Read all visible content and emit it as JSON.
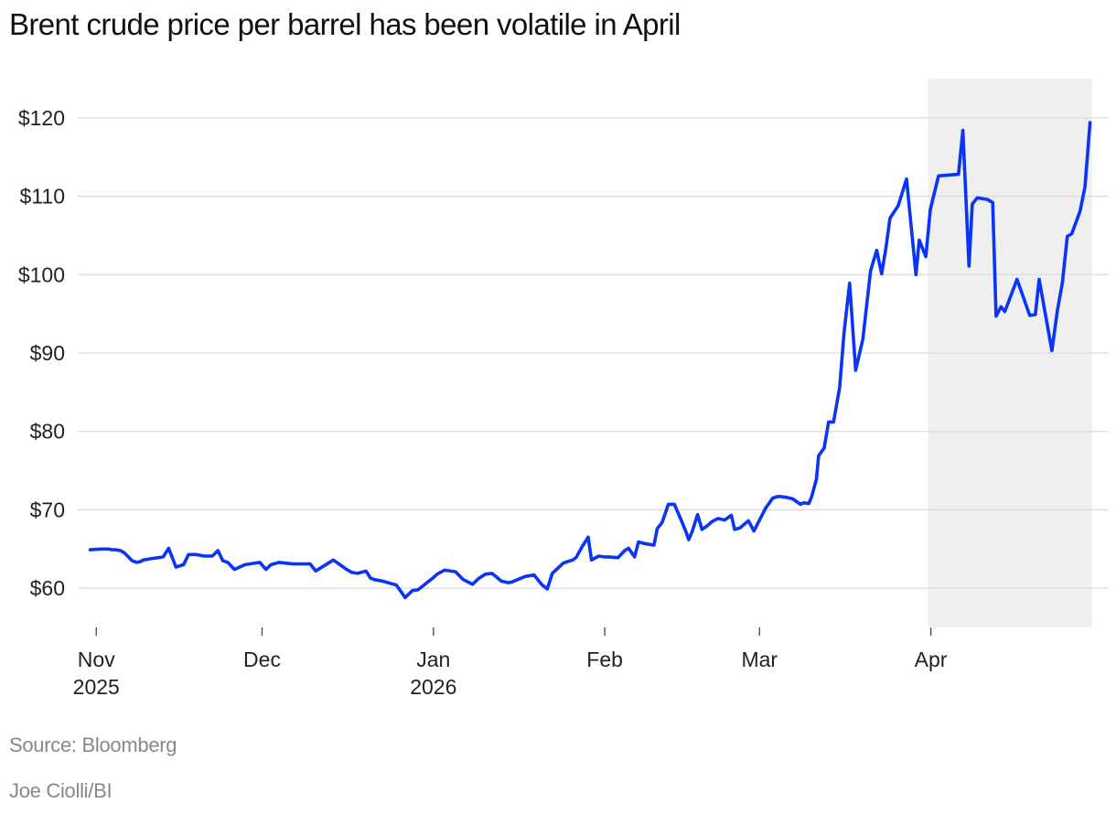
{
  "chart_data": {
    "type": "line",
    "title": "Brent crude price per barrel has been volatile in April",
    "xlabel": "",
    "ylabel": "",
    "y_axis": {
      "ticks": [
        60,
        70,
        80,
        90,
        100,
        110,
        120
      ],
      "tick_labels": [
        "$60",
        "$70",
        "$80",
        "$90",
        "$100",
        "$110",
        "$120"
      ],
      "range": [
        55,
        125
      ],
      "grid": true
    },
    "x_axis": {
      "unit": "days since Nov 1, 2025",
      "range": [
        -1.2,
        180.2
      ],
      "ticks": [
        {
          "day": 0,
          "label": "Nov",
          "sublabel": "2025"
        },
        {
          "day": 30,
          "label": "Dec",
          "sublabel": ""
        },
        {
          "day": 61,
          "label": "Jan",
          "sublabel": "2026"
        },
        {
          "day": 92,
          "label": "Feb",
          "sublabel": ""
        },
        {
          "day": 120,
          "label": "Mar",
          "sublabel": ""
        },
        {
          "day": 151,
          "label": "Apr",
          "sublabel": ""
        }
      ]
    },
    "highlight": {
      "label": "April",
      "x_start": 150.5,
      "x_end": 180.2,
      "color": "#efefef"
    },
    "series": [
      {
        "name": "Brent crude price per barrel",
        "color": "#0a35f5",
        "x": [
          -1.1,
          0.7,
          1.3,
          2.2,
          2.9,
          3.5,
          4.4,
          5.1,
          6.5,
          7.3,
          8.0,
          8.5,
          9.4,
          10.1,
          11.3,
          12.1,
          13.1,
          14.4,
          15.8,
          16.7,
          17.3,
          18.0,
          19.6,
          21.0,
          22.0,
          22.9,
          23.8,
          25.0,
          26.9,
          29.6,
          30.7,
          31.6,
          33.1,
          35.6,
          37.8,
          38.7,
          39.7,
          42.9,
          43.9,
          44.7,
          45.3,
          46.3,
          47.3,
          48.8,
          49.6,
          50.3,
          51.8,
          54.3,
          55.9,
          57.2,
          58.2,
          60.9,
          61.7,
          63.0,
          65.0,
          66.4,
          68.1,
          69.1,
          70.4,
          71.6,
          73.3,
          74.5,
          75.2,
          77.6,
          79.2,
          80.0,
          80.7,
          81.6,
          82.5,
          84.5,
          85.3,
          86.2,
          86.8,
          88.0,
          89.0,
          89.6,
          90.9,
          91.9,
          92.7,
          94.4,
          95.6,
          96.3,
          97.4,
          98.1,
          99.2,
          100.0,
          100.9,
          101.5,
          102.4,
          103.5,
          104.6,
          105.7,
          106.7,
          107.2,
          107.8,
          108.8,
          109.6,
          110.6,
          111.4,
          112.5,
          113.7,
          114.9,
          115.5,
          116.5,
          117.3,
          118.0,
          119.0,
          121.1,
          122.4,
          123.3,
          123.7,
          124.8,
          126.0,
          127.4,
          128.0,
          128.9,
          129.4,
          130.3,
          130.7,
          131.7,
          132.5,
          133.4,
          134.5,
          135.3,
          136.3,
          137.4,
          138.7,
          140.1,
          141.2,
          142.1,
          142.9,
          143.6,
          145.1,
          146.6,
          148.3,
          148.9,
          150.1,
          150.9,
          152.4,
          156.0,
          156.8,
          157.9,
          158.5,
          159.4,
          161.2,
          162.2,
          162.8,
          163.7,
          164.4,
          166.6,
          168.9,
          169.9,
          170.6,
          172.9,
          173.9,
          174.8,
          175.7,
          176.5,
          178.0,
          178.9,
          179.8
        ],
        "y": [
          64.9,
          65.0,
          65.0,
          65.0,
          64.9,
          64.9,
          64.8,
          64.5,
          63.5,
          63.3,
          63.4,
          63.6,
          63.7,
          63.8,
          63.9,
          64.0,
          65.1,
          62.7,
          63.0,
          64.3,
          64.3,
          64.3,
          64.1,
          64.1,
          64.8,
          63.5,
          63.3,
          62.4,
          63.0,
          63.3,
          62.4,
          63.0,
          63.3,
          63.1,
          63.1,
          63.1,
          62.2,
          63.6,
          63.1,
          62.7,
          62.4,
          62.0,
          61.9,
          62.2,
          61.3,
          61.1,
          60.9,
          60.4,
          58.8,
          59.7,
          59.8,
          61.3,
          61.8,
          62.3,
          62.1,
          61.1,
          60.5,
          61.2,
          61.8,
          61.9,
          60.9,
          60.7,
          60.8,
          61.5,
          61.7,
          61.0,
          60.4,
          59.9,
          61.9,
          63.2,
          63.4,
          63.6,
          63.9,
          65.4,
          66.5,
          63.6,
          64.1,
          64.0,
          64.0,
          63.9,
          64.8,
          65.1,
          64.0,
          65.9,
          65.7,
          65.6,
          65.5,
          67.6,
          68.4,
          70.7,
          70.7,
          68.9,
          67.2,
          66.2,
          67.2,
          69.4,
          67.5,
          68.0,
          68.5,
          68.9,
          68.7,
          69.3,
          67.5,
          67.7,
          68.2,
          68.6,
          67.3,
          70.2,
          71.5,
          71.7,
          71.7,
          71.6,
          71.4,
          70.7,
          70.9,
          70.8,
          71.6,
          73.9,
          76.9,
          77.9,
          81.2,
          81.2,
          85.6,
          92.6,
          98.9,
          87.8,
          91.8,
          100.5,
          103.1,
          100.1,
          103.5,
          107.2,
          108.8,
          112.2,
          100.0,
          104.4,
          102.3,
          108.3,
          112.6,
          112.8,
          118.4,
          101.1,
          109.0,
          109.8,
          109.6,
          109.2,
          94.7,
          95.9,
          95.3,
          99.4,
          94.8,
          94.9,
          99.4,
          90.3,
          95.4,
          99.0,
          104.9,
          105.2,
          108.1,
          111.2,
          119.4
        ]
      }
    ]
  },
  "footer": {
    "source": "Source: Bloomberg",
    "credit": "Joe Ciolli/BI"
  }
}
